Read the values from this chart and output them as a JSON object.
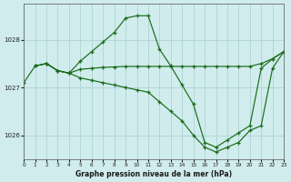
{
  "title": "Graphe pression niveau de la mer (hPa)",
  "background_color": "#d0ecec",
  "grid_color": "#aed4d4",
  "line_color": "#1a6b1a",
  "xlim": [
    0,
    23
  ],
  "ylim": [
    1025.5,
    1028.75
  ],
  "yticks": [
    1026,
    1027,
    1028
  ],
  "xticks": [
    0,
    1,
    2,
    3,
    4,
    5,
    6,
    7,
    8,
    9,
    10,
    11,
    12,
    13,
    14,
    15,
    16,
    17,
    18,
    19,
    20,
    21,
    22,
    23
  ],
  "series": [
    {
      "x": [
        0,
        1,
        2,
        3,
        4,
        5,
        6,
        7,
        8,
        9,
        10,
        11,
        12,
        13,
        14,
        15,
        16,
        17,
        18,
        19,
        20,
        21,
        22,
        23
      ],
      "y": [
        1027.1,
        1027.45,
        1027.5,
        1027.35,
        1027.3,
        1027.55,
        1027.75,
        1027.95,
        1028.15,
        1028.45,
        1028.5,
        1028.5,
        1027.8,
        1027.45,
        1027.05,
        1026.65,
        1025.85,
        1025.75,
        1025.9,
        1026.05,
        1026.2,
        1027.4,
        1027.6,
        1027.75
      ]
    },
    {
      "x": [
        1,
        2,
        3,
        4,
        5,
        6,
        7,
        8,
        9,
        10,
        11,
        12,
        13,
        14,
        15,
        16,
        17,
        18,
        19,
        20,
        21,
        22,
        23
      ],
      "y": [
        1027.45,
        1027.5,
        1027.35,
        1027.3,
        1027.38,
        1027.4,
        1027.42,
        1027.43,
        1027.44,
        1027.44,
        1027.44,
        1027.44,
        1027.44,
        1027.44,
        1027.44,
        1027.44,
        1027.44,
        1027.44,
        1027.44,
        1027.44,
        1027.5,
        1027.6,
        1027.75
      ]
    },
    {
      "x": [
        1,
        2,
        3,
        4,
        5,
        6,
        7,
        8,
        9,
        10,
        11,
        12,
        13,
        14,
        15,
        16,
        17,
        18,
        19,
        20,
        21,
        22,
        23
      ],
      "y": [
        1027.45,
        1027.5,
        1027.35,
        1027.3,
        1027.2,
        1027.15,
        1027.1,
        1027.05,
        1027.0,
        1026.95,
        1026.9,
        1026.7,
        1026.5,
        1026.3,
        1026.0,
        1025.75,
        1025.65,
        1025.75,
        1025.85,
        1026.1,
        1026.2,
        1027.4,
        1027.75
      ]
    }
  ]
}
